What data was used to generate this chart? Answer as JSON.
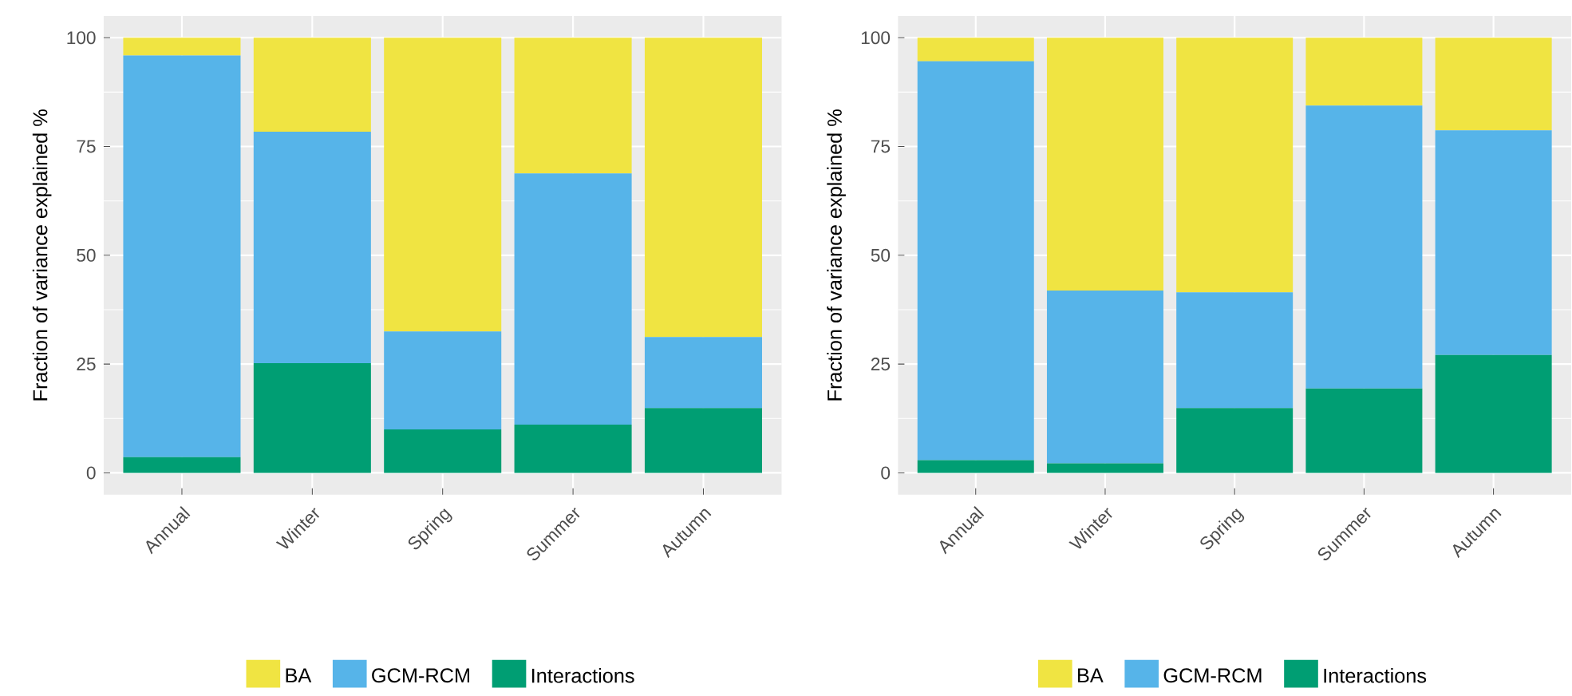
{
  "chart_data": [
    {
      "type": "bar",
      "stacked": true,
      "ylabel": "Fraction of variance explained %",
      "categories": [
        "Annual",
        "Winter",
        "Spring",
        "Summer",
        "Autumn"
      ],
      "ylim": [
        -5,
        105
      ],
      "yticks": [
        0,
        25,
        50,
        75,
        100
      ],
      "grid": true,
      "legend": "bottom",
      "series": [
        {
          "name": "Interactions",
          "color": "#009e73",
          "values": [
            3.6,
            25.2,
            10.0,
            11.1,
            14.9
          ]
        },
        {
          "name": "GCM-RCM",
          "color": "#56b4e9",
          "values": [
            92.3,
            53.2,
            22.5,
            57.7,
            16.3
          ]
        },
        {
          "name": "BA",
          "color": "#f0e442",
          "values": [
            4.1,
            21.6,
            67.5,
            31.2,
            68.8
          ]
        }
      ]
    },
    {
      "type": "bar",
      "stacked": true,
      "ylabel": "Fraction of variance explained %",
      "categories": [
        "Annual",
        "Winter",
        "Spring",
        "Summer",
        "Autumn"
      ],
      "ylim": [
        -5,
        105
      ],
      "yticks": [
        0,
        25,
        50,
        75,
        100
      ],
      "grid": true,
      "legend": "bottom",
      "series": [
        {
          "name": "Interactions",
          "color": "#009e73",
          "values": [
            2.9,
            2.2,
            14.9,
            19.4,
            27.1
          ]
        },
        {
          "name": "GCM-RCM",
          "color": "#56b4e9",
          "values": [
            91.7,
            39.7,
            26.6,
            65.0,
            51.6
          ]
        },
        {
          "name": "BA",
          "color": "#f0e442",
          "values": [
            5.4,
            58.1,
            58.5,
            15.6,
            21.3
          ]
        }
      ]
    }
  ]
}
